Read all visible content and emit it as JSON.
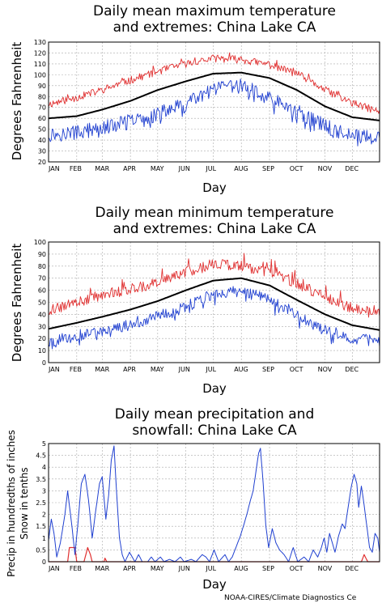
{
  "credit": "NOAA-CIRES/Climate Diagnostics Ce",
  "colors": {
    "mean": "#000000",
    "max_extreme": "#e03030",
    "min_extreme": "#2040d0",
    "precip": "#2040d0",
    "snow": "#e03030",
    "grid": "#aaaaaa"
  },
  "chart_data": [
    {
      "type": "line",
      "title": [
        "Daily mean maximum temperature",
        "and extremes: China Lake CA"
      ],
      "xlabel": "Day",
      "ylabel": "Degrees Fahrenheit",
      "ylim": [
        20,
        130
      ],
      "yticks": [
        20,
        30,
        40,
        50,
        60,
        70,
        80,
        90,
        100,
        110,
        120,
        130
      ],
      "months": [
        "JAN",
        "FEB",
        "MAR",
        "APR",
        "MAY",
        "JUN",
        "JUL",
        "AUG",
        "SEP",
        "OCT",
        "NOV",
        "DEC"
      ],
      "grid": true,
      "series_knots": {
        "mean": [
          [
            1,
            60
          ],
          [
            32,
            62
          ],
          [
            60,
            68
          ],
          [
            91,
            76
          ],
          [
            121,
            86
          ],
          [
            152,
            94
          ],
          [
            182,
            101
          ],
          [
            213,
            102
          ],
          [
            244,
            97
          ],
          [
            274,
            86
          ],
          [
            305,
            71
          ],
          [
            335,
            61
          ],
          [
            365,
            58
          ]
        ],
        "record_high": [
          [
            1,
            73
          ],
          [
            32,
            79
          ],
          [
            60,
            86
          ],
          [
            91,
            95
          ],
          [
            121,
            103
          ],
          [
            152,
            110
          ],
          [
            182,
            115
          ],
          [
            213,
            114
          ],
          [
            244,
            109
          ],
          [
            274,
            101
          ],
          [
            305,
            86
          ],
          [
            335,
            74
          ],
          [
            365,
            66
          ]
        ],
        "record_low": [
          [
            1,
            45
          ],
          [
            32,
            47
          ],
          [
            60,
            51
          ],
          [
            91,
            57
          ],
          [
            121,
            64
          ],
          [
            152,
            73
          ],
          [
            182,
            86
          ],
          [
            213,
            90
          ],
          [
            244,
            78
          ],
          [
            274,
            66
          ],
          [
            305,
            53
          ],
          [
            335,
            44
          ],
          [
            365,
            42
          ]
        ]
      }
    },
    {
      "type": "line",
      "title": [
        "Daily mean minimum temperature",
        "and extremes: China Lake CA"
      ],
      "xlabel": "Day",
      "ylabel": "Degrees Fahrenheit",
      "ylim": [
        0,
        100
      ],
      "yticks": [
        0,
        10,
        20,
        30,
        40,
        50,
        60,
        70,
        80,
        90,
        100
      ],
      "months": [
        "JAN",
        "FEB",
        "MAR",
        "APR",
        "MAY",
        "JUN",
        "JUL",
        "AUG",
        "SEP",
        "OCT",
        "NOV",
        "DEC"
      ],
      "grid": true,
      "series_knots": {
        "mean": [
          [
            1,
            28
          ],
          [
            32,
            33
          ],
          [
            60,
            38
          ],
          [
            91,
            44
          ],
          [
            121,
            51
          ],
          [
            152,
            60
          ],
          [
            182,
            68
          ],
          [
            213,
            70
          ],
          [
            244,
            64
          ],
          [
            274,
            52
          ],
          [
            305,
            40
          ],
          [
            335,
            31
          ],
          [
            365,
            27
          ]
        ],
        "record_high": [
          [
            1,
            43
          ],
          [
            32,
            50
          ],
          [
            60,
            56
          ],
          [
            91,
            61
          ],
          [
            121,
            66
          ],
          [
            152,
            74
          ],
          [
            182,
            82
          ],
          [
            213,
            80
          ],
          [
            244,
            75
          ],
          [
            274,
            66
          ],
          [
            305,
            54
          ],
          [
            335,
            45
          ],
          [
            365,
            40
          ]
        ],
        "record_low": [
          [
            1,
            17
          ],
          [
            32,
            22
          ],
          [
            60,
            26
          ],
          [
            91,
            32
          ],
          [
            121,
            38
          ],
          [
            152,
            46
          ],
          [
            182,
            57
          ],
          [
            213,
            60
          ],
          [
            244,
            52
          ],
          [
            274,
            40
          ],
          [
            305,
            27
          ],
          [
            335,
            20
          ],
          [
            365,
            18
          ]
        ]
      }
    },
    {
      "type": "line",
      "title": [
        "Daily mean precipitation and",
        "snowfall: China Lake CA"
      ],
      "xlabel": "Day",
      "ylabel": [
        "Precip in hundredths of inches",
        "Snow in tenths"
      ],
      "ylim": [
        0,
        5
      ],
      "yticks": [
        0,
        0.5,
        1,
        1.5,
        2,
        2.5,
        3,
        3.5,
        4,
        4.5,
        5
      ],
      "ytick_labels": [
        "0",
        "0.5",
        "1",
        "1.5",
        "2",
        "2.5",
        "3",
        "3.5",
        "4",
        "4.5",
        "5"
      ],
      "months": [
        "JAN",
        "FEB",
        "MAR",
        "APR",
        "MAY",
        "JUN",
        "JUL",
        "AUG",
        "SEP",
        "OCT",
        "NOV",
        "DEC"
      ],
      "grid": true,
      "series_knots": {
        "precip": [
          [
            1,
            0.9
          ],
          [
            4,
            1.8
          ],
          [
            7,
            1.2
          ],
          [
            10,
            0.2
          ],
          [
            14,
            0.8
          ],
          [
            19,
            2.0
          ],
          [
            22,
            3.0
          ],
          [
            27,
            1.4
          ],
          [
            30,
            0.3
          ],
          [
            33,
            1.5
          ],
          [
            37,
            3.3
          ],
          [
            41,
            3.7
          ],
          [
            45,
            2.6
          ],
          [
            49,
            1.0
          ],
          [
            53,
            2.2
          ],
          [
            57,
            3.3
          ],
          [
            60,
            3.6
          ],
          [
            64,
            1.8
          ],
          [
            67,
            2.8
          ],
          [
            70,
            4.3
          ],
          [
            73,
            4.9
          ],
          [
            76,
            2.8
          ],
          [
            79,
            1.0
          ],
          [
            82,
            0.3
          ],
          [
            85,
            0.0
          ],
          [
            90,
            0.4
          ],
          [
            96,
            0.0
          ],
          [
            100,
            0.3
          ],
          [
            104,
            0.0
          ],
          [
            110,
            0.0
          ],
          [
            114,
            0.2
          ],
          [
            118,
            0.0
          ],
          [
            124,
            0.2
          ],
          [
            128,
            0.0
          ],
          [
            134,
            0.1
          ],
          [
            140,
            0.0
          ],
          [
            146,
            0.2
          ],
          [
            150,
            0.0
          ],
          [
            158,
            0.1
          ],
          [
            163,
            0.0
          ],
          [
            170,
            0.3
          ],
          [
            174,
            0.2
          ],
          [
            178,
            0.0
          ],
          [
            183,
            0.5
          ],
          [
            188,
            0.0
          ],
          [
            195,
            0.3
          ],
          [
            199,
            0.0
          ],
          [
            203,
            0.2
          ],
          [
            206,
            0.5
          ],
          [
            209,
            0.8
          ],
          [
            212,
            1.1
          ],
          [
            216,
            1.6
          ],
          [
            219,
            2.0
          ],
          [
            223,
            2.6
          ],
          [
            226,
            3.0
          ],
          [
            229,
            3.8
          ],
          [
            232,
            4.6
          ],
          [
            234,
            4.8
          ],
          [
            237,
            3.3
          ],
          [
            240,
            1.5
          ],
          [
            243,
            0.6
          ],
          [
            247,
            1.4
          ],
          [
            251,
            0.8
          ],
          [
            255,
            0.5
          ],
          [
            260,
            0.3
          ],
          [
            265,
            0.0
          ],
          [
            270,
            0.6
          ],
          [
            275,
            0.0
          ],
          [
            282,
            0.2
          ],
          [
            287,
            0.0
          ],
          [
            292,
            0.5
          ],
          [
            297,
            0.2
          ],
          [
            301,
            0.6
          ],
          [
            304,
            1.0
          ],
          [
            307,
            0.4
          ],
          [
            310,
            1.2
          ],
          [
            313,
            0.8
          ],
          [
            316,
            0.4
          ],
          [
            320,
            1.1
          ],
          [
            324,
            1.6
          ],
          [
            327,
            1.4
          ],
          [
            330,
            2.2
          ],
          [
            334,
            3.2
          ],
          [
            337,
            3.7
          ],
          [
            340,
            3.3
          ],
          [
            342,
            2.3
          ],
          [
            345,
            3.2
          ],
          [
            348,
            2.4
          ],
          [
            351,
            1.5
          ],
          [
            354,
            0.6
          ],
          [
            357,
            0.4
          ],
          [
            360,
            1.2
          ],
          [
            363,
            1.0
          ],
          [
            365,
            0.4
          ]
        ],
        "snow": [
          [
            1,
            0
          ],
          [
            22,
            0
          ],
          [
            24,
            0.6
          ],
          [
            30,
            0.6
          ],
          [
            32,
            0
          ],
          [
            40,
            0
          ],
          [
            42,
            0.3
          ],
          [
            44,
            0.6
          ],
          [
            47,
            0.3
          ],
          [
            49,
            0
          ],
          [
            62,
            0
          ],
          [
            63,
            0.15
          ],
          [
            65,
            0
          ],
          [
            335,
            0
          ],
          [
            345,
            0
          ],
          [
            348,
            0.3
          ],
          [
            352,
            0
          ],
          [
            365,
            0
          ]
        ]
      }
    }
  ]
}
